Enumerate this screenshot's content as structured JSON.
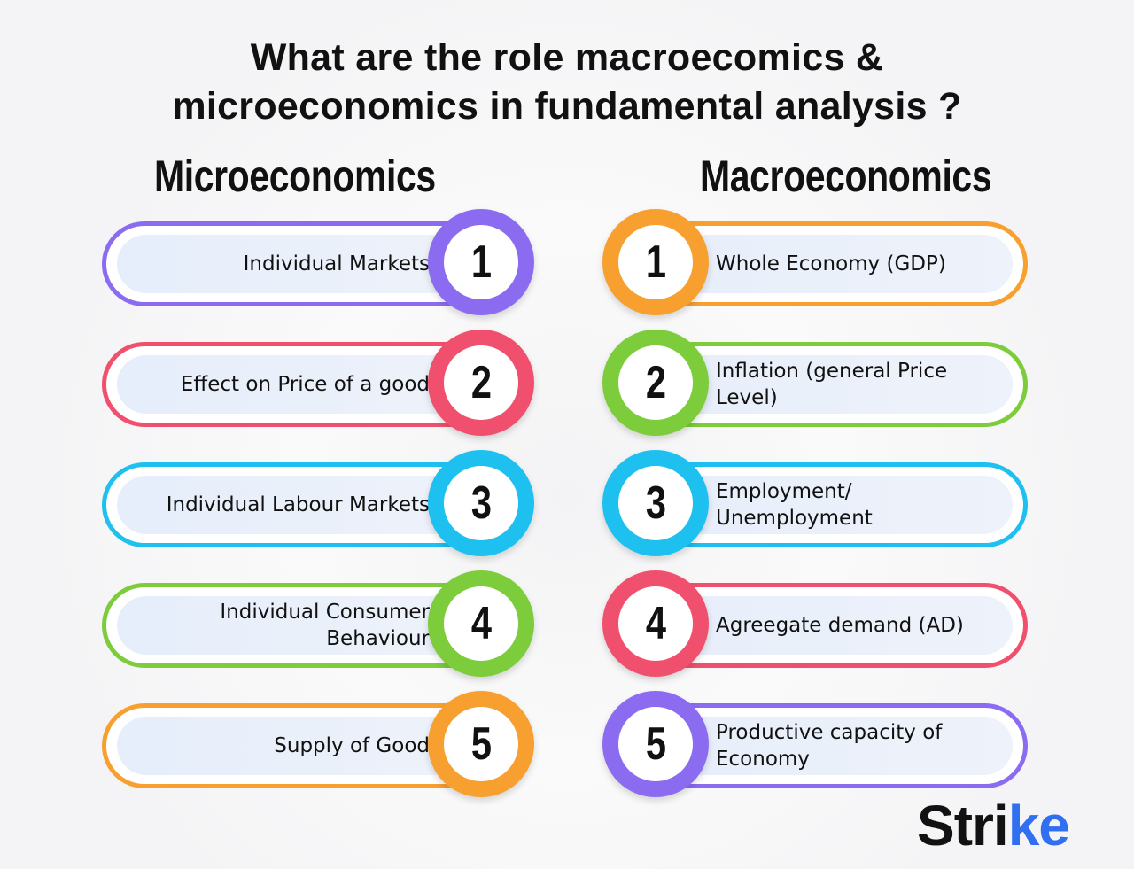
{
  "title_line1": "What are the role macroecomics &",
  "title_line2": "microeconomics in fundamental analysis ?",
  "micro": {
    "heading": "Microeconomics",
    "items": [
      {
        "num": "1",
        "label": "Individual Markets",
        "color": "#8b6cf0"
      },
      {
        "num": "2",
        "label": "Effect on Price of a good",
        "color": "#f0506e"
      },
      {
        "num": "3",
        "label": "Individual Labour Markets",
        "color": "#1ec0f0"
      },
      {
        "num": "4",
        "label": "Individual Consumer Behaviour",
        "color": "#7ccc3c"
      },
      {
        "num": "5",
        "label": "Supply of Good",
        "color": "#f7a030"
      }
    ]
  },
  "macro": {
    "heading": "Macroeconomics",
    "items": [
      {
        "num": "1",
        "label": "Whole Economy (GDP)",
        "color": "#f7a030"
      },
      {
        "num": "2",
        "label": "Inflation (general Price Level)",
        "color": "#7ccc3c"
      },
      {
        "num": "3",
        "label": "Employment/ Unemployment",
        "color": "#1ec0f0"
      },
      {
        "num": "4",
        "label": "Agreegate demand (AD)",
        "color": "#f0506e"
      },
      {
        "num": "5",
        "label": "Productive capacity of Economy",
        "color": "#8b6cf0"
      }
    ]
  },
  "logo": {
    "main": "Stri",
    "accent": "ke",
    "accent_color": "#2f6ff0"
  }
}
